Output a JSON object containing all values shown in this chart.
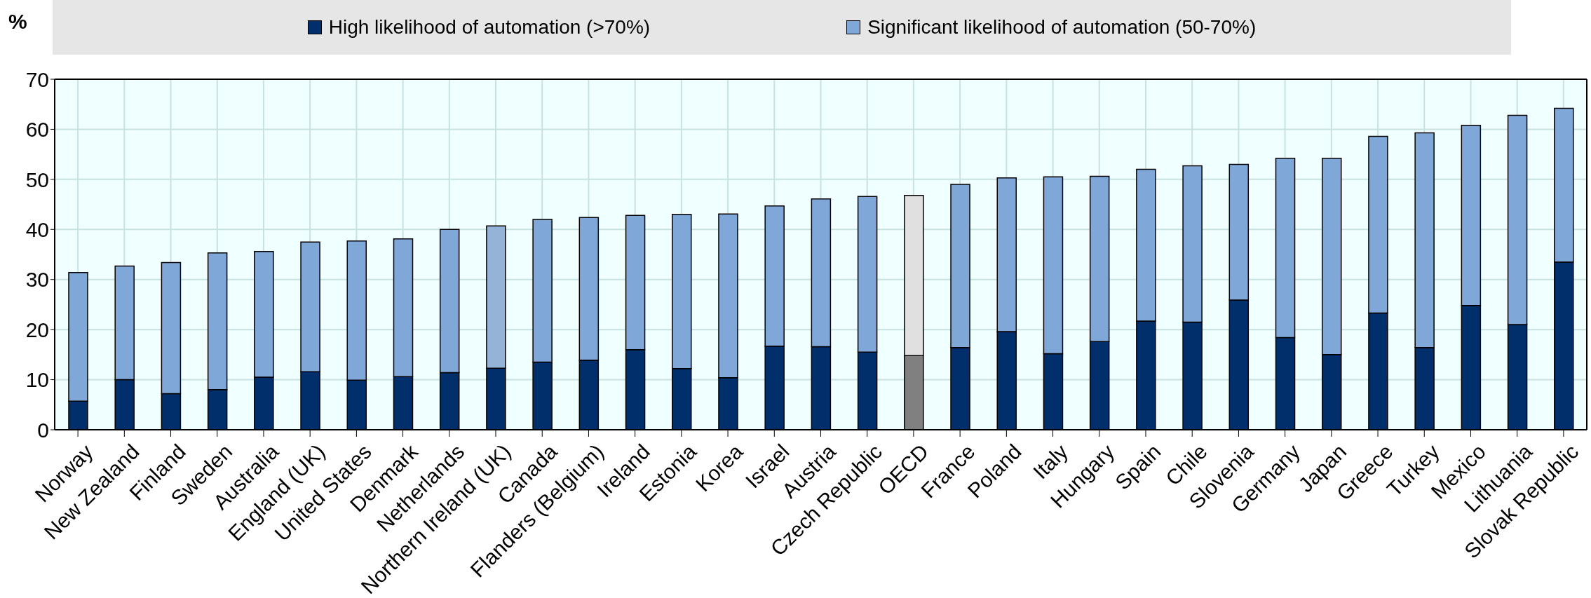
{
  "chart_data": {
    "type": "bar",
    "stacked": true,
    "ylabel": "%",
    "categories": [
      "Norway",
      "New Zealand",
      "Finland",
      "Sweden",
      "Australia",
      "England (UK)",
      "United States",
      "Denmark",
      "Netherlands",
      "Northern Ireland (UK)",
      "Canada",
      "Flanders (Belgium)",
      "Ireland",
      "Estonia",
      "Korea",
      "Israel",
      "Austria",
      "Czech Republic",
      "OECD",
      "France",
      "Poland",
      "Italy",
      "Hungary",
      "Spain",
      "Chile",
      "Slovenia",
      "Germany",
      "Japan",
      "Greece",
      "Turkey",
      "Mexico",
      "Lithuania",
      "Slovak Republic"
    ],
    "series": [
      {
        "name": "High likelihood of automation (>70%)",
        "color": "#002f6c",
        "colors": [
          "#002f6c",
          "#002f6c",
          "#002f6c",
          "#002f6c",
          "#002f6c",
          "#002f6c",
          "#002f6c",
          "#002f6c",
          "#002f6c",
          "#002f6c",
          "#002f6c",
          "#002f6c",
          "#002f6c",
          "#002f6c",
          "#002f6c",
          "#002f6c",
          "#002f6c",
          "#002f6c",
          "#808080",
          "#002f6c",
          "#002f6c",
          "#002f6c",
          "#002f6c",
          "#002f6c",
          "#002f6c",
          "#002f6c",
          "#002f6c",
          "#002f6c",
          "#002f6c",
          "#002f6c",
          "#002f6c",
          "#002f6c",
          "#002f6c"
        ],
        "values": [
          5.7,
          10,
          7.2,
          8,
          10.5,
          11.6,
          9.9,
          10.6,
          11.4,
          12.3,
          13.5,
          13.9,
          16,
          12.2,
          10.4,
          16.7,
          16.6,
          15.5,
          14.8,
          16.4,
          19.6,
          15.2,
          17.6,
          21.7,
          21.5,
          25.9,
          18.4,
          15,
          23.3,
          16.4,
          24.8,
          21,
          33.5
        ]
      },
      {
        "name": "Significant likelihood of automation (50-70%)",
        "color": "#7fa8d9",
        "colors": [
          "#7fa8d9",
          "#7fa8d9",
          "#7fa8d9",
          "#7fa8d9",
          "#7fa8d9",
          "#7fa8d9",
          "#7fa8d9",
          "#7fa8d9",
          "#7fa8d9",
          "#95b3d7",
          "#7fa8d9",
          "#7fa8d9",
          "#7fa8d9",
          "#7fa8d9",
          "#7fa8d9",
          "#7fa8d9",
          "#7fa8d9",
          "#7fa8d9",
          "#e0e0e0",
          "#7fa8d9",
          "#7fa8d9",
          "#7fa8d9",
          "#7fa8d9",
          "#7fa8d9",
          "#7fa8d9",
          "#7fa8d9",
          "#7fa8d9",
          "#7fa8d9",
          "#7fa8d9",
          "#7fa8d9",
          "#7fa8d9",
          "#7fa8d9",
          "#7fa8d9"
        ],
        "values": [
          25.7,
          22.7,
          26.2,
          27.3,
          25.1,
          25.9,
          27.8,
          27.5,
          28.6,
          28.4,
          28.5,
          28.5,
          26.8,
          30.8,
          32.7,
          28,
          29.5,
          31.1,
          32,
          32.6,
          30.7,
          35.3,
          33,
          30.3,
          31.2,
          27.1,
          35.8,
          39.2,
          35.3,
          42.9,
          36,
          41.8,
          30.7
        ]
      }
    ],
    "ylim": [
      0,
      70
    ],
    "yticks": [
      0,
      10,
      20,
      30,
      40,
      50,
      60,
      70
    ],
    "grid": true,
    "legend": "top"
  }
}
